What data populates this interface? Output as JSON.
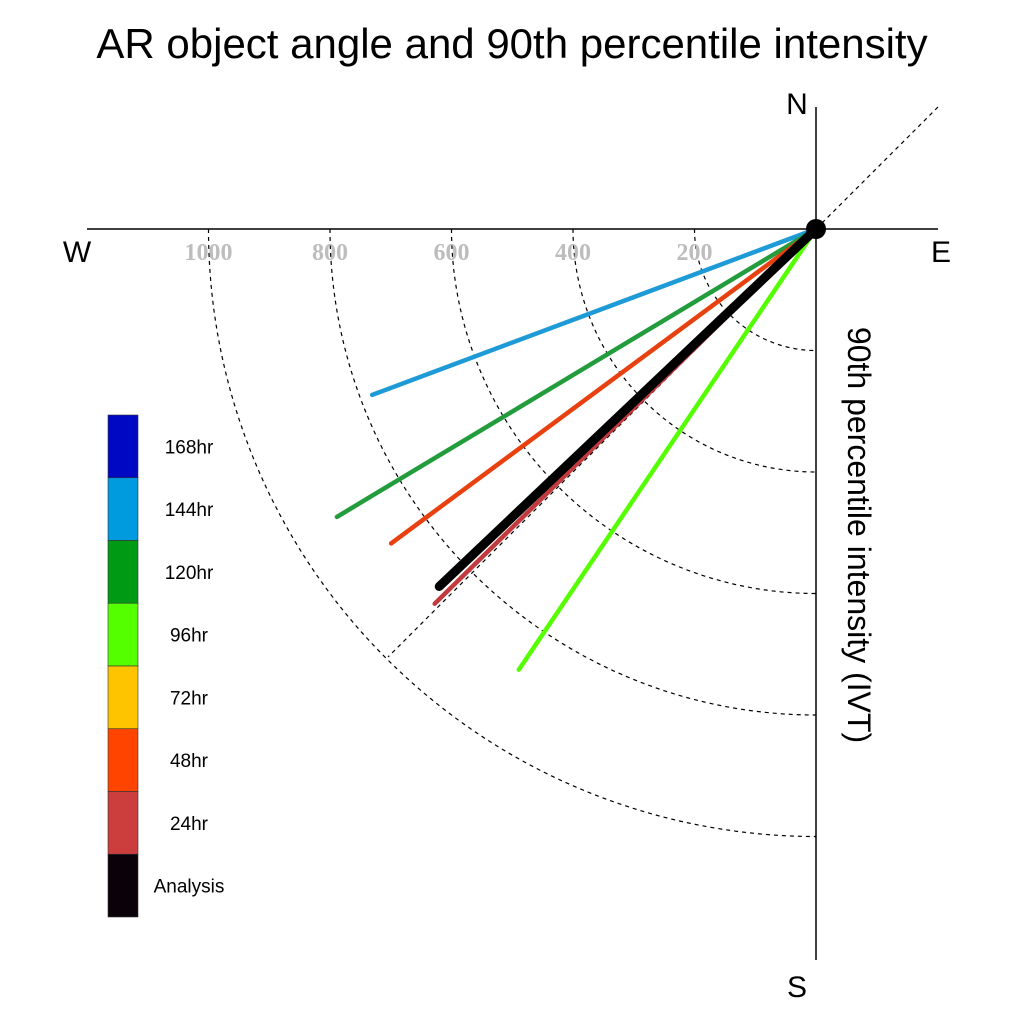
{
  "chart_data": {
    "type": "polar-vector",
    "title": "AR object angle and 90th percentile intensity",
    "ylabel": "90th percentile intensity (IVT)",
    "directions": {
      "north": "N",
      "south": "S",
      "east": "E",
      "west": "W"
    },
    "radial_ticks": [
      200,
      400,
      600,
      800,
      1000
    ],
    "radial_tick_labels": [
      "200",
      "400",
      "600",
      "800",
      "1000"
    ],
    "rmax": 1200,
    "series": [
      {
        "name": "168hr",
        "color": "#0014c8",
        "angle_deg": null,
        "intensity": null
      },
      {
        "name": "144hr",
        "color": "#1e9bd7",
        "angle_deg": 20.5,
        "intensity": 780
      },
      {
        "name": "120hr",
        "color": "#229c3c",
        "angle_deg": 31,
        "intensity": 920
      },
      {
        "name": "96hr",
        "color": "#55ff00",
        "angle_deg": 56,
        "intensity": 875
      },
      {
        "name": "72hr",
        "color": "#ffc400",
        "angle_deg": null,
        "intensity": null
      },
      {
        "name": "48hr",
        "color": "#e8410f",
        "angle_deg": 36.5,
        "intensity": 870
      },
      {
        "name": "24hr",
        "color": "#c23a3e",
        "angle_deg": 44.5,
        "intensity": 880
      },
      {
        "name": "Analysis",
        "color": "#000000",
        "angle_deg": 43.5,
        "intensity": 855
      }
    ],
    "legend": {
      "placement": "left",
      "entries": [
        {
          "label": "168hr",
          "color": "#0008c4"
        },
        {
          "label": "144hr",
          "color": "#009ade"
        },
        {
          "label": "120hr",
          "color": "#009a15"
        },
        {
          "label": "96hr",
          "color": "#54ff00"
        },
        {
          "label": "72hr",
          "color": "#ffc400"
        },
        {
          "label": "48hr",
          "color": "#ff4400"
        },
        {
          "label": "24hr",
          "color": "#cc3d3d"
        },
        {
          "label": "Analysis",
          "color": "#0a0208"
        }
      ]
    },
    "grid": true,
    "angle_reference_note": null
  }
}
